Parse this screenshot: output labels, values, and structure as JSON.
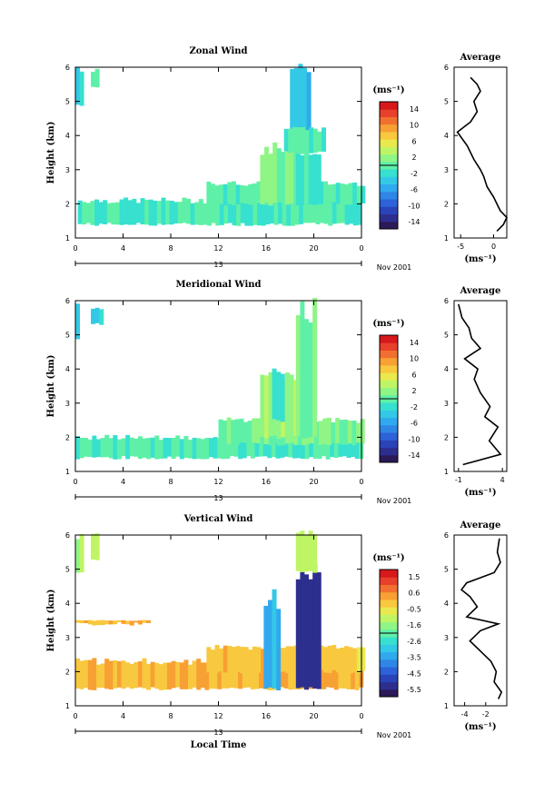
{
  "figure": {
    "month_label": "Nov 2001",
    "xlabel": "Local Time",
    "unit_label": "(ms⁻¹)"
  },
  "colormap": [
    "#2b1a57",
    "#2d2f8f",
    "#2a43b8",
    "#2d62d8",
    "#2f86e6",
    "#31a9ee",
    "#33c9e6",
    "#37e0cf",
    "#5ff0a8",
    "#8ff585",
    "#bff564",
    "#e9e94e",
    "#f8c83e",
    "#f7a034",
    "#f2702f",
    "#e8402a",
    "#d7191c"
  ],
  "chart_data": [
    {
      "type": "heatmap",
      "title": "Zonal Wind",
      "ylabel": "Height (km)",
      "xlabel": "",
      "xlim": [
        0,
        24
      ],
      "ylim": [
        1,
        6
      ],
      "x_ticks": [
        "0",
        "4",
        "8",
        "12",
        "16",
        "20",
        "0"
      ],
      "y_ticks": [
        "1",
        "2",
        "3",
        "4",
        "5",
        "6"
      ],
      "date_label": "13",
      "colorbar": {
        "ticks": [
          "14",
          "10",
          "6",
          "2",
          "-2",
          "-6",
          "-10",
          "-14"
        ],
        "range": [
          -16,
          16
        ]
      },
      "series": [
        {
          "name": "",
          "x_range": [
            0.2,
            24
          ],
          "height_range": [
            1.4,
            2.1
          ],
          "value": -1
        },
        {
          "name": "",
          "x_range": [
            0,
            0.4
          ],
          "height_range": [
            4.9,
            5.9
          ],
          "value": -3
        },
        {
          "name": "",
          "x_range": [
            1.3,
            1.9
          ],
          "height_range": [
            5.4,
            5.9
          ],
          "value": 0
        },
        {
          "name": "",
          "x_range": [
            11,
            24
          ],
          "height_range": [
            2.0,
            2.6
          ],
          "value": 0
        },
        {
          "name": "",
          "x_range": [
            15.5,
            18.5
          ],
          "height_range": [
            2.0,
            3.6
          ],
          "value": 2
        },
        {
          "name": "",
          "x_range": [
            18.5,
            20.5
          ],
          "height_range": [
            2.0,
            3.6
          ],
          "value": -1
        },
        {
          "name": "",
          "x_range": [
            18.0,
            19.5
          ],
          "height_range": [
            3.7,
            6.0
          ],
          "value": -5
        },
        {
          "name": "",
          "x_range": [
            17.5,
            21
          ],
          "height_range": [
            3.5,
            4.2
          ],
          "value": 0
        }
      ],
      "average_profile": {
        "title": "Average",
        "xlabel": "(ms⁻¹)",
        "xlim": [
          -6,
          2
        ],
        "ylim": [
          1,
          6
        ],
        "x_ticks": [
          "-5",
          "0"
        ],
        "y_ticks": [
          "1",
          "2",
          "3",
          "4",
          "5",
          "6"
        ],
        "x": [
          0.5,
          1.5,
          2.0,
          1.0,
          0.5,
          0.0,
          -1.0,
          -1.5,
          -2.0,
          -3.0,
          -4.0,
          -5.5,
          -3.5,
          -2.5,
          -3.0,
          -2.0,
          -2.5,
          -3.5
        ],
        "height": [
          1.2,
          1.4,
          1.6,
          1.8,
          2.0,
          2.2,
          2.5,
          2.8,
          3.0,
          3.3,
          3.7,
          4.1,
          4.4,
          4.7,
          5.0,
          5.3,
          5.5,
          5.7
        ]
      }
    },
    {
      "type": "heatmap",
      "title": "Meridional Wind",
      "ylabel": "Height (km)",
      "xlabel": "",
      "xlim": [
        0,
        24
      ],
      "ylim": [
        1,
        6
      ],
      "x_ticks": [
        "0",
        "4",
        "8",
        "12",
        "16",
        "20",
        "0"
      ],
      "y_ticks": [
        "1",
        "2",
        "3",
        "4",
        "5",
        "6"
      ],
      "date_label": "13",
      "colorbar": {
        "ticks": [
          "14",
          "10",
          "6",
          "2",
          "-2",
          "-6",
          "-10",
          "-14"
        ],
        "range": [
          -16,
          16
        ]
      },
      "series": [
        {
          "name": "",
          "x_range": [
            0,
            24
          ],
          "height_range": [
            1.4,
            2.0
          ],
          "value": -1
        },
        {
          "name": "",
          "x_range": [
            0,
            0.3
          ],
          "height_range": [
            4.9,
            5.8
          ],
          "value": -3
        },
        {
          "name": "",
          "x_range": [
            1.3,
            2.1
          ],
          "height_range": [
            5.3,
            5.8
          ],
          "value": -4
        },
        {
          "name": "",
          "x_range": [
            12,
            24
          ],
          "height_range": [
            1.8,
            2.5
          ],
          "value": 1
        },
        {
          "name": "",
          "x_range": [
            15.5,
            18.5
          ],
          "height_range": [
            2.0,
            3.7
          ],
          "value": 3
        },
        {
          "name": "",
          "x_range": [
            18.5,
            20.0
          ],
          "height_range": [
            2.0,
            5.8
          ],
          "value": 1
        },
        {
          "name": "",
          "x_range": [
            16.5,
            17.5
          ],
          "height_range": [
            2.5,
            3.9
          ],
          "value": -2
        }
      ],
      "average_profile": {
        "title": "Average",
        "xlabel": "(ms⁻¹)",
        "xlim": [
          -1.5,
          4.5
        ],
        "ylim": [
          1,
          6
        ],
        "x_ticks": [
          "-1",
          "4"
        ],
        "y_ticks": [
          "1",
          "2",
          "3",
          "4",
          "5",
          "6"
        ],
        "x": [
          -0.5,
          3.8,
          2.5,
          3.5,
          2.0,
          2.6,
          1.5,
          0.8,
          1.2,
          -0.3,
          1.5,
          0.5,
          0.2,
          -0.6,
          -0.8,
          -1.0
        ],
        "height": [
          1.2,
          1.5,
          1.9,
          2.3,
          2.6,
          2.9,
          3.3,
          3.7,
          4.0,
          4.3,
          4.6,
          4.9,
          5.2,
          5.5,
          5.7,
          5.9
        ]
      }
    },
    {
      "type": "heatmap",
      "title": "Vertical Wind",
      "ylabel": "Height (km)",
      "xlabel": "Local Time",
      "xlim": [
        0,
        24
      ],
      "ylim": [
        1,
        6
      ],
      "x_ticks": [
        "0",
        "4",
        "8",
        "12",
        "16",
        "20",
        "0"
      ],
      "y_ticks": [
        "1",
        "2",
        "3",
        "4",
        "5",
        "6"
      ],
      "date_label": "13",
      "colorbar": {
        "ticks": [
          "1.5",
          "0.6",
          "-0.5",
          "-1.6",
          "-2.6",
          "-3.5",
          "-4.5",
          "-5.5"
        ],
        "range": [
          -6,
          2
        ]
      },
      "series": [
        {
          "name": "",
          "x_range": [
            0,
            24
          ],
          "height_range": [
            1.5,
            2.3
          ],
          "value": 0.2
        },
        {
          "name": "",
          "x_range": [
            11,
            24
          ],
          "height_range": [
            2.0,
            2.7
          ],
          "value": 0.0
        },
        {
          "name": "",
          "x_range": [
            0,
            6
          ],
          "height_range": [
            3.4,
            3.5
          ],
          "value": 0.3
        },
        {
          "name": "",
          "x_range": [
            0,
            0.4
          ],
          "height_range": [
            4.9,
            6.0
          ],
          "value": -1.2
        },
        {
          "name": "",
          "x_range": [
            1.3,
            1.9
          ],
          "height_range": [
            5.3,
            6.0
          ],
          "value": -1.2
        },
        {
          "name": "",
          "x_range": [
            15.8,
            17.0
          ],
          "height_range": [
            1.5,
            4.1
          ],
          "value": -3.5
        },
        {
          "name": "",
          "x_range": [
            18.5,
            20.5
          ],
          "height_range": [
            1.5,
            4.9
          ],
          "value": -5.5
        },
        {
          "name": "",
          "x_range": [
            18.5,
            20.0
          ],
          "height_range": [
            4.9,
            6.0
          ],
          "value": -1.0
        }
      ],
      "average_profile": {
        "title": "Average",
        "xlabel": "(ms⁻¹)",
        "xlim": [
          -5,
          0
        ],
        "ylim": [
          1,
          6
        ],
        "x_ticks": [
          "-4",
          "-2"
        ],
        "y_ticks": [
          "1",
          "2",
          "3",
          "4",
          "5",
          "6"
        ],
        "x": [
          -0.8,
          -0.5,
          -1.2,
          -1.0,
          -1.5,
          -2.5,
          -3.5,
          -2.5,
          -0.8,
          -3.8,
          -2.8,
          -3.5,
          -4.3,
          -3.8,
          -1.2,
          -0.6,
          -0.9,
          -0.7
        ],
        "height": [
          1.2,
          1.4,
          1.7,
          2.0,
          2.3,
          2.6,
          2.9,
          3.2,
          3.4,
          3.6,
          3.9,
          4.2,
          4.4,
          4.6,
          4.9,
          5.2,
          5.5,
          5.9
        ]
      }
    }
  ]
}
